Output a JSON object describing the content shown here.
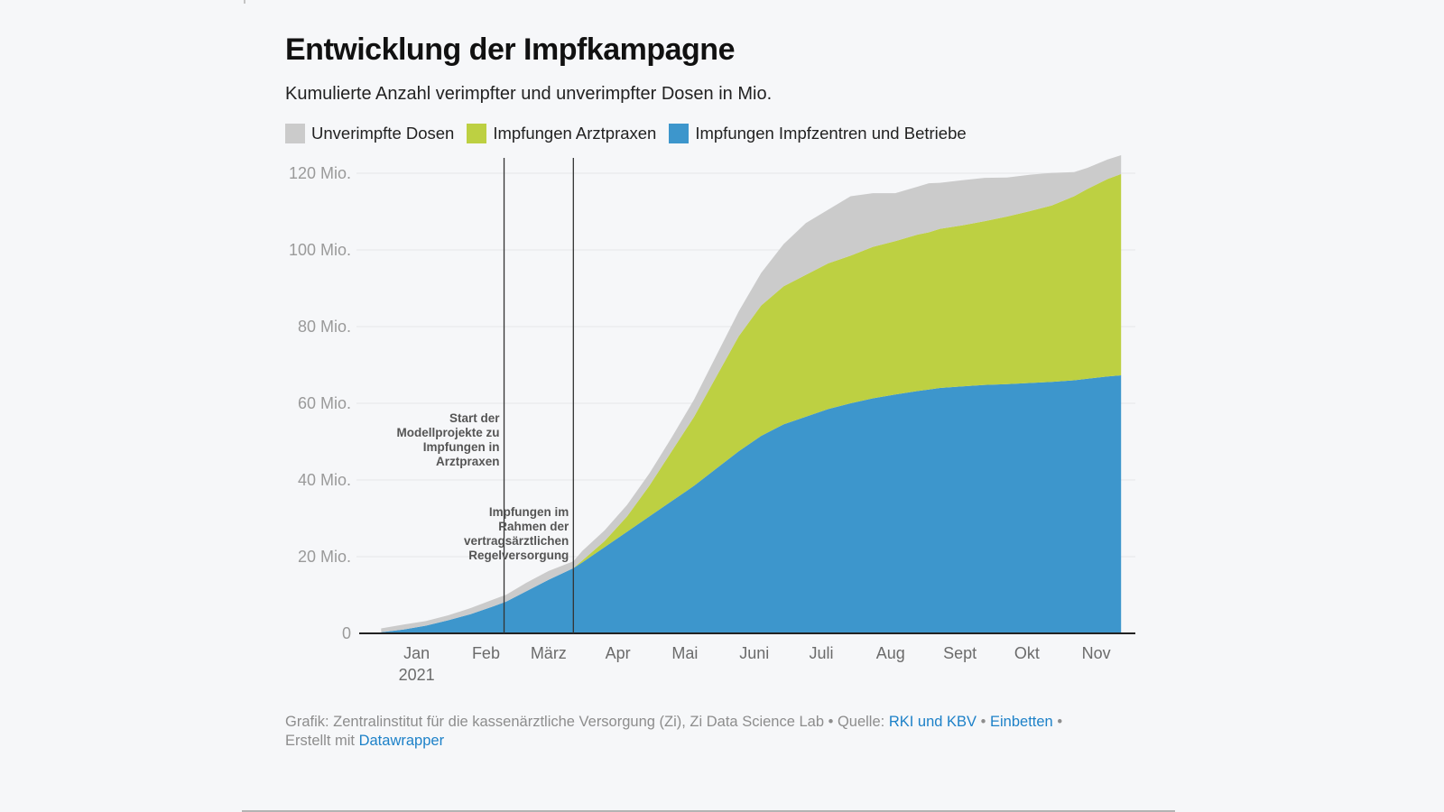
{
  "header": {
    "title": "Entwicklung der Impfkampagne",
    "subtitle": "Kumulierte Anzahl verimpfter und unverimpfter Dosen in Mio."
  },
  "legend": [
    {
      "label": "Unverimpfte Dosen",
      "color": "#cbcbcb"
    },
    {
      "label": "Impfungen Arztpraxen",
      "color": "#bdd042"
    },
    {
      "label": "Impfungen Impfzentren und Betriebe",
      "color": "#3d96cc"
    }
  ],
  "footer": {
    "prefix": "Grafik: Zentralinstitut für die kassenärztliche Versorgung (Zi), Zi Data Science Lab • Quelle: ",
    "source_link": "RKI und KBV",
    "sep1": " • ",
    "embed_link": "Einbetten",
    "sep2": " •",
    "created_prefix": "Erstellt mit ",
    "created_link": "Datawrapper"
  },
  "chart_data": {
    "type": "area",
    "stacked": true,
    "title": "Entwicklung der Impfkampagne",
    "subtitle": "Kumulierte Anzahl verimpfter und unverimpfter Dosen in Mio.",
    "xlabel": "",
    "ylabel": "",
    "x_unit": "day of year 2021",
    "ylim": [
      0,
      120
    ],
    "grid": true,
    "legend_position": "top-left",
    "y_ticks": [
      {
        "value": 0,
        "label": "0"
      },
      {
        "value": 20,
        "label": "20 Mio."
      },
      {
        "value": 40,
        "label": "40 Mio."
      },
      {
        "value": 60,
        "label": "60 Mio."
      },
      {
        "value": 80,
        "label": "80 Mio."
      },
      {
        "value": 100,
        "label": "100 Mio."
      },
      {
        "value": 120,
        "label": "120 Mio."
      }
    ],
    "x_ticks": [
      {
        "day": 15,
        "label": "Jan",
        "sublabel": "2021"
      },
      {
        "day": 46,
        "label": "Feb"
      },
      {
        "day": 74,
        "label": "März"
      },
      {
        "day": 105,
        "label": "Apr"
      },
      {
        "day": 135,
        "label": "Mai"
      },
      {
        "day": 166,
        "label": "Juni"
      },
      {
        "day": 196,
        "label": "Juli"
      },
      {
        "day": 227,
        "label": "Aug"
      },
      {
        "day": 258,
        "label": "Sept"
      },
      {
        "day": 288,
        "label": "Okt"
      },
      {
        "day": 319,
        "label": "Nov"
      }
    ],
    "x": [
      10,
      20,
      30,
      40,
      50,
      60,
      66,
      75,
      85,
      96,
      100,
      110,
      120,
      130,
      140,
      150,
      160,
      170,
      180,
      190,
      200,
      210,
      220,
      230,
      240,
      250,
      255,
      260,
      270,
      280,
      290,
      300,
      310,
      320,
      326,
      335,
      341
    ],
    "series": [
      {
        "name": "Impfungen Impfzentren und Betriebe",
        "color": "#3d96cc",
        "values": [
          0.3,
          1.0,
          2.0,
          3.4,
          5.0,
          7.0,
          8.3,
          11.0,
          14.0,
          17.0,
          18.5,
          22.5,
          26.5,
          30.5,
          34.5,
          38.5,
          43.0,
          47.5,
          51.5,
          54.5,
          56.5,
          58.5,
          60.0,
          61.3,
          62.3,
          63.2,
          63.6,
          64.0,
          64.4,
          64.8,
          65.0,
          65.3,
          65.6,
          66.0,
          66.4,
          67.0,
          67.3
        ]
      },
      {
        "name": "Impfungen Arztpraxen",
        "color": "#bdd042",
        "values": [
          0,
          0,
          0,
          0,
          0,
          0,
          0,
          0,
          0,
          0,
          0.5,
          1.6,
          4.0,
          8.0,
          13.0,
          18.0,
          24.0,
          30.0,
          34.0,
          36.0,
          37.0,
          38.0,
          38.5,
          39.5,
          40.0,
          40.8,
          41.0,
          41.5,
          42.0,
          42.7,
          43.7,
          44.8,
          46.0,
          48.0,
          49.5,
          51.5,
          52.5
        ]
      },
      {
        "name": "Unverimpfte Dosen",
        "color": "#cbcbcb",
        "values": [
          1.0,
          1.3,
          1.2,
          1.3,
          1.6,
          1.8,
          1.8,
          2.2,
          2.3,
          1.8,
          2.5,
          2.8,
          3.0,
          3.2,
          3.6,
          4.5,
          5.5,
          6.5,
          8.5,
          11.0,
          13.5,
          14.0,
          15.5,
          14.0,
          12.5,
          12.5,
          12.8,
          12.0,
          11.8,
          11.3,
          10.2,
          9.5,
          8.5,
          6.3,
          5.5,
          5.1,
          4.9
        ]
      }
    ],
    "annotations": [
      {
        "day": 65,
        "lines": [
          "Start der",
          "Modellprojekte zu",
          "Impfungen in",
          "Arztpraxen"
        ]
      },
      {
        "day": 96,
        "lines": [
          "Impfungen im",
          "Rahmen der",
          "vertragsärztlichen",
          "Regelversorgung"
        ]
      }
    ]
  }
}
